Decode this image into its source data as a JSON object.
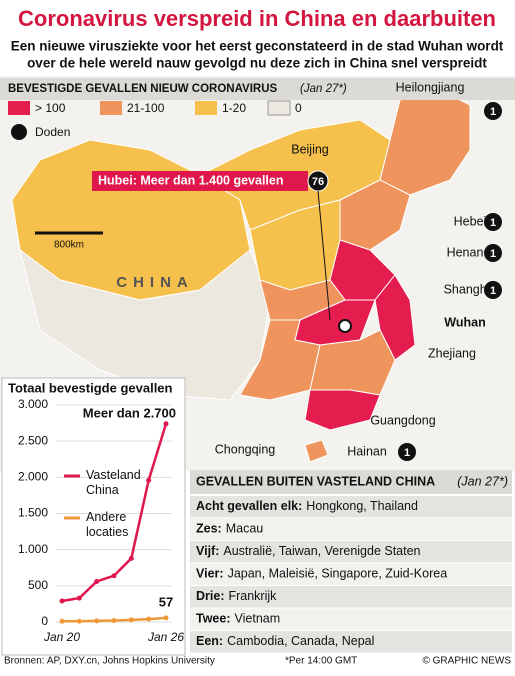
{
  "header": {
    "title": "Coronavirus verspreid in China en daarbuiten",
    "subtitle_lines": [
      "Een nieuwe virusziekte voor het eerst geconstateerd in de stad Wuhan wordt",
      "over de hele wereld nauw gevolgd nu deze zich in China snel verspreidt"
    ]
  },
  "map": {
    "legend_title": "Bevestigde gevallen nieuw coronavirus",
    "legend_date": "(Jan 27*)",
    "legend_items": [
      "> 100",
      "21-100",
      "1-20",
      "0",
      "Doden"
    ],
    "country": "CHINA",
    "scale": "800km",
    "callout": {
      "text": "Hubei: Meer dan 1.400 gevallen",
      "deaths": 76
    },
    "places": [
      {
        "name": "Heilongjiang",
        "deaths": 1
      },
      {
        "name": "Beijing"
      },
      {
        "name": "Hebei",
        "deaths": 1
      },
      {
        "name": "Henan",
        "deaths": 1
      },
      {
        "name": "Shanghai",
        "deaths": 1
      },
      {
        "name": "Wuhan"
      },
      {
        "name": "Zhejiang"
      },
      {
        "name": "Guangdong"
      },
      {
        "name": "Hainan",
        "deaths": 1
      },
      {
        "name": "Chongqing"
      }
    ]
  },
  "chart_data": {
    "type": "line",
    "title": "Totaal bevestigde gevallen",
    "categories": [
      "Jan 20",
      null,
      null,
      null,
      null,
      null,
      "Jan 26"
    ],
    "series": [
      {
        "name": "Vasteland China",
        "color": "#e0174d",
        "values": [
          290,
          330,
          560,
          640,
          880,
          1960,
          2740
        ]
      },
      {
        "name": "Andere locaties",
        "color": "#f0993a",
        "values": [
          10,
          10,
          15,
          20,
          30,
          40,
          57
        ]
      }
    ],
    "annotation": "Meer dan 2.700",
    "ylim": [
      0,
      3000
    ],
    "yticks": [
      0,
      500,
      {
        "value": 1000,
        "label": "1.000"
      },
      {
        "value": 1500,
        "label": "1.500"
      },
      {
        "value": 2000,
        "label": "2.000"
      },
      {
        "value": 2500,
        "label": "2.500"
      },
      {
        "value": 3000,
        "label": "3.000"
      }
    ],
    "grid": true
  },
  "table": {
    "title": "Gevallen buiten vasteland China",
    "date": "(Jan 27*)",
    "rows": [
      {
        "label": "Acht gevallen elk:",
        "text": "Hongkong, Thailand"
      },
      {
        "label": "Zes:",
        "text": "Macau"
      },
      {
        "label": "Vijf:",
        "text": "Australië, Taiwan, Verenigde Staten"
      },
      {
        "label": "Vier:",
        "text": "Japan, Maleisië, Singapore, Zuid-Korea"
      },
      {
        "label": "Drie:",
        "text": "Frankrijk"
      },
      {
        "label": "Twee:",
        "text": "Vietnam"
      },
      {
        "label": "Een:",
        "text": "Cambodia, Canada, Nepal"
      }
    ]
  },
  "footer": {
    "sources": "Bronnen: AP, DXY.cn, Johns Hopkins University",
    "note": "*Per 14:00 GMT",
    "credit": "© GRAPHIC NEWS"
  }
}
